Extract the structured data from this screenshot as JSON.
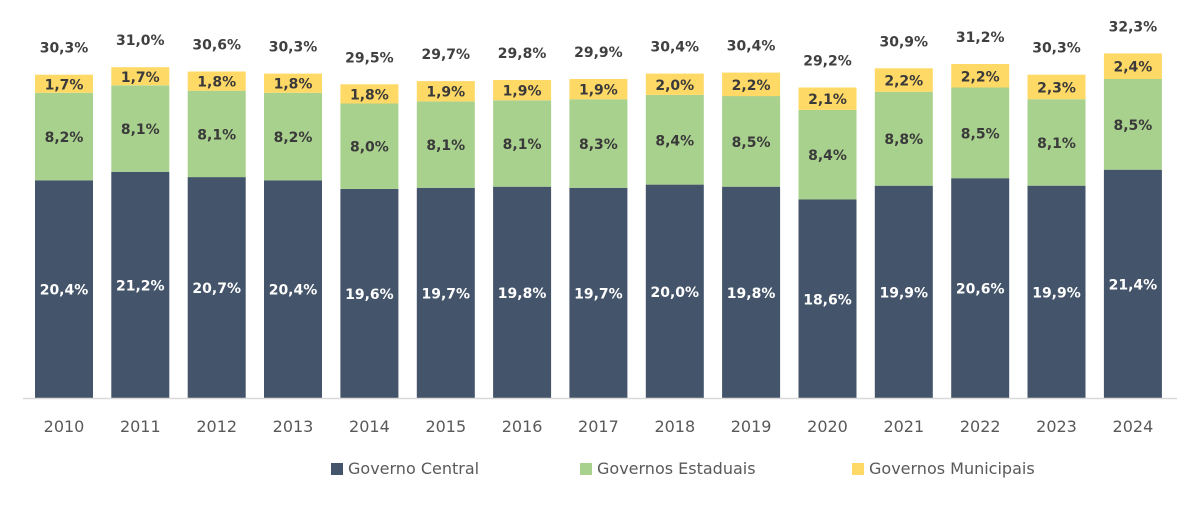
{
  "chart_data": {
    "type": "bar",
    "stacked": true,
    "title": "",
    "xlabel": "",
    "ylabel": "",
    "ylim": [
      0,
      37.3
    ],
    "grid": false,
    "legend_position": "bottom",
    "categories": [
      "2010",
      "2011",
      "2012",
      "2013",
      "2014",
      "2015",
      "2016",
      "2017",
      "2018",
      "2019",
      "2020",
      "2021",
      "2022",
      "2023",
      "2024"
    ],
    "series": [
      {
        "name": "Governo Central",
        "color": "#44546a",
        "label_color": "#ffffff",
        "values": [
          20.4,
          21.2,
          20.7,
          20.4,
          19.6,
          19.7,
          19.8,
          19.7,
          20.0,
          19.8,
          18.6,
          19.9,
          20.6,
          19.9,
          21.4
        ],
        "labels": [
          "20,4%",
          "21,2%",
          "20,7%",
          "20,4%",
          "19,6%",
          "19,7%",
          "19,8%",
          "19,7%",
          "20,0%",
          "19,8%",
          "18,6%",
          "19,9%",
          "20,6%",
          "19,9%",
          "21,4%"
        ]
      },
      {
        "name": "Governos Estaduais",
        "color": "#a9d18e",
        "label_color": "#3a3a3a",
        "values": [
          8.2,
          8.1,
          8.1,
          8.2,
          8.0,
          8.1,
          8.1,
          8.3,
          8.4,
          8.5,
          8.4,
          8.8,
          8.5,
          8.1,
          8.5
        ],
        "labels": [
          "8,2%",
          "8,1%",
          "8,1%",
          "8,2%",
          "8,0%",
          "8,1%",
          "8,1%",
          "8,3%",
          "8,4%",
          "8,5%",
          "8,4%",
          "8,8%",
          "8,5%",
          "8,1%",
          "8,5%"
        ]
      },
      {
        "name": "Governos Municipais",
        "color": "#ffd966",
        "label_color": "#3a3a3a",
        "values": [
          1.7,
          1.7,
          1.8,
          1.8,
          1.8,
          1.9,
          1.9,
          1.9,
          2.0,
          2.2,
          2.1,
          2.2,
          2.2,
          2.3,
          2.4
        ],
        "labels": [
          "1,7%",
          "1,7%",
          "1,8%",
          "1,8%",
          "1,8%",
          "1,9%",
          "1,9%",
          "1,9%",
          "2,0%",
          "2,2%",
          "2,1%",
          "2,2%",
          "2,2%",
          "2,3%",
          "2,4%"
        ]
      }
    ],
    "totals": [
      30.3,
      31.0,
      30.6,
      30.3,
      29.5,
      29.7,
      29.8,
      29.9,
      30.4,
      30.4,
      29.2,
      30.9,
      31.2,
      30.3,
      32.3
    ],
    "total_labels": [
      "30,3%",
      "31,0%",
      "30,6%",
      "30,3%",
      "29,5%",
      "29,7%",
      "29,8%",
      "29,9%",
      "30,4%",
      "30,4%",
      "29,2%",
      "30,9%",
      "31,2%",
      "30,3%",
      "32,3%"
    ]
  },
  "colors": {
    "axis": "#d9d9d9",
    "tick_text": "#595959",
    "total_text": "#404040"
  }
}
